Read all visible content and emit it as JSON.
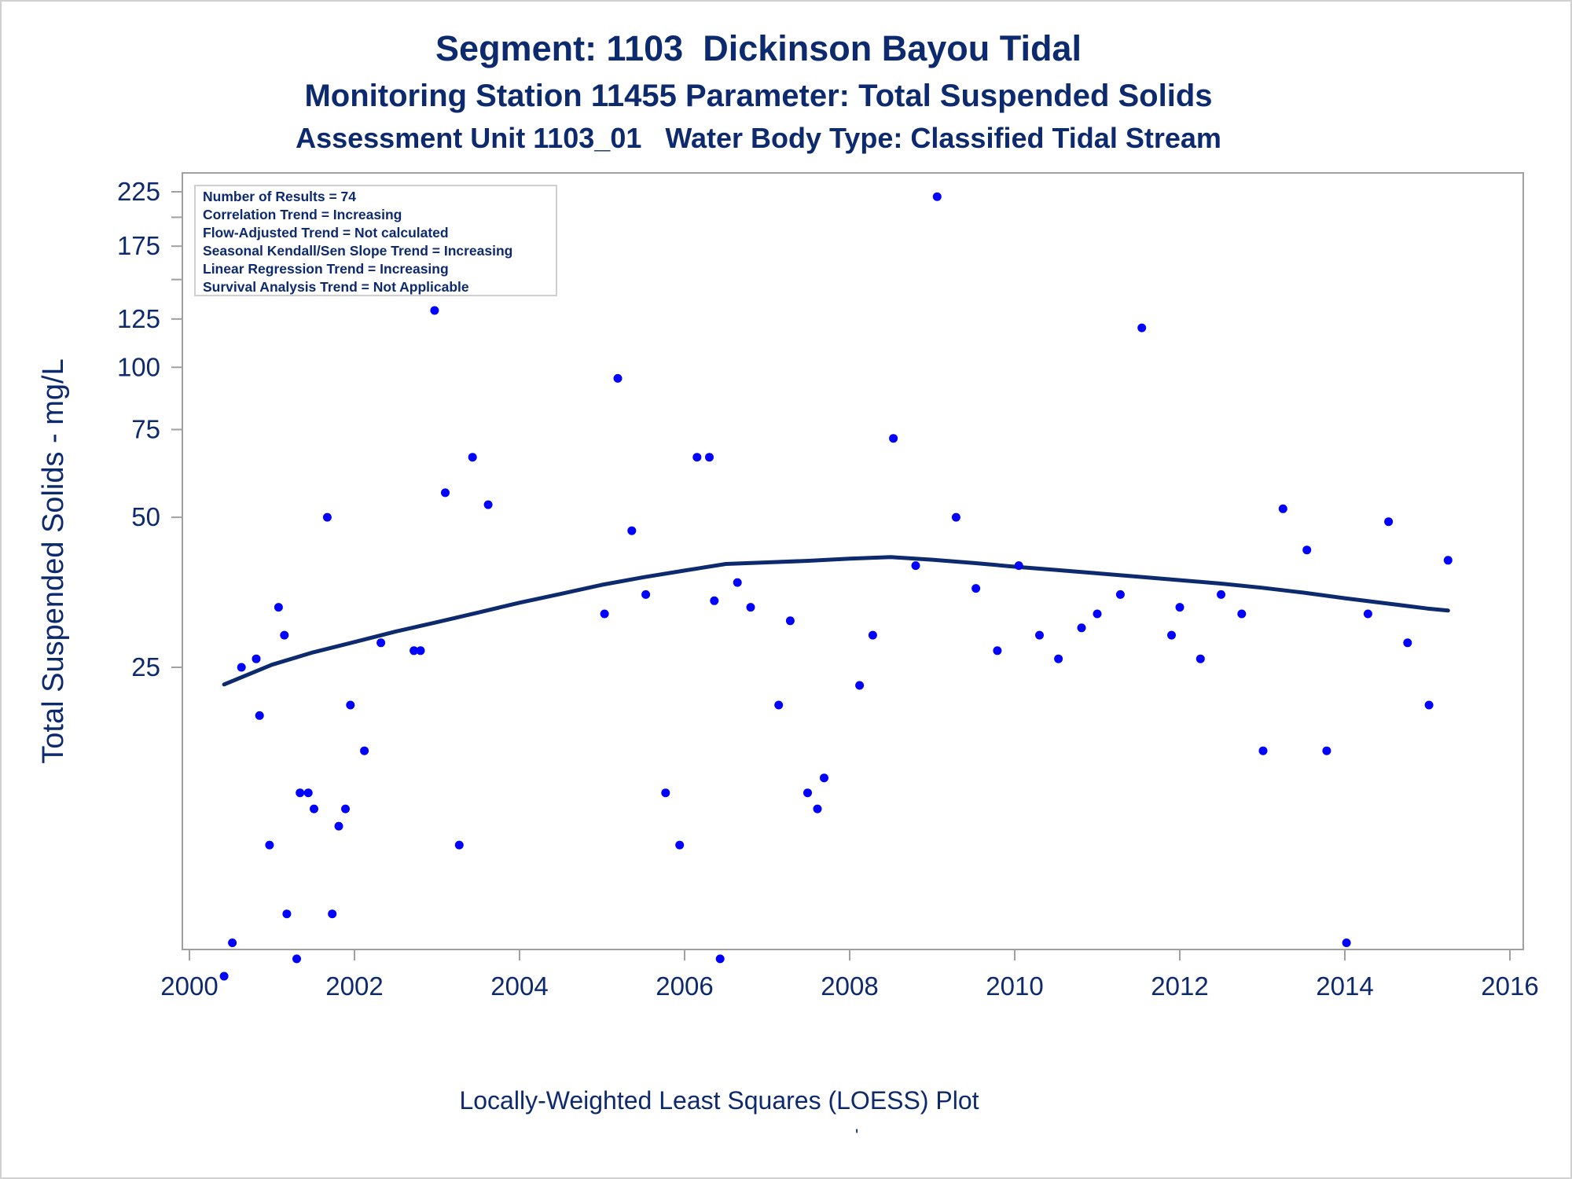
{
  "titles": {
    "line1": "Segment: 1103  Dickinson Bayou Tidal",
    "line2": "Monitoring Station 11455 Parameter: Total Suspended Solids",
    "line3": "Assessment Unit 1103_01   Water Body Type: Classified Tidal Stream"
  },
  "footnote": "Locally-Weighted Least Squares (LOESS) Plot",
  "footnote_mark": "'",
  "stats_box": [
    "Number of Results = 74",
    "Correlation Trend = Increasing",
    "Flow-Adjusted Trend = Not calculated",
    "Seasonal Kendall/Sen Slope Trend = Increasing",
    "Linear Regression Trend = Increasing",
    "Survival Analysis Trend = Not Applicable"
  ],
  "colors": {
    "text": "#0d2a6e",
    "points": "#0000ff",
    "loess": "#0d2a6e",
    "axis": "#a0a0a0"
  },
  "chart_data": {
    "type": "scatter",
    "ylabel": "Total Suspended Solids - mg/L",
    "xlabel": "",
    "y_scale": "log",
    "xlim": [
      2000,
      2016
    ],
    "x_ticks": [
      2000,
      2002,
      2004,
      2006,
      2008,
      2010,
      2012,
      2014,
      2016
    ],
    "y_ticks": [
      25,
      50,
      75,
      100,
      125,
      175,
      225
    ],
    "grid": false,
    "legend": "top-left",
    "series": [
      {
        "kind": "points",
        "points": [
          [
            2000.42,
            6
          ],
          [
            2000.52,
            7
          ],
          [
            2000.63,
            25
          ],
          [
            2000.81,
            26
          ],
          [
            2000.85,
            20
          ],
          [
            2000.97,
            11
          ],
          [
            2001.08,
            33
          ],
          [
            2001.15,
            29
          ],
          [
            2001.18,
            8
          ],
          [
            2001.3,
            6.5
          ],
          [
            2001.34,
            14
          ],
          [
            2001.44,
            14
          ],
          [
            2001.51,
            13
          ],
          [
            2001.67,
            50
          ],
          [
            2001.73,
            8
          ],
          [
            2001.81,
            12
          ],
          [
            2001.89,
            13
          ],
          [
            2001.95,
            21
          ],
          [
            2002.12,
            17
          ],
          [
            2002.32,
            28
          ],
          [
            2002.72,
            27
          ],
          [
            2002.8,
            27
          ],
          [
            2002.97,
            130
          ],
          [
            2003.1,
            56
          ],
          [
            2003.27,
            11
          ],
          [
            2003.43,
            66
          ],
          [
            2003.62,
            53
          ],
          [
            2005.03,
            32
          ],
          [
            2005.19,
            95
          ],
          [
            2005.36,
            47
          ],
          [
            2005.53,
            35
          ],
          [
            2005.77,
            14
          ],
          [
            2005.94,
            11
          ],
          [
            2006.15,
            66
          ],
          [
            2006.3,
            66
          ],
          [
            2006.36,
            34
          ],
          [
            2006.43,
            6.5
          ],
          [
            2006.64,
            37
          ],
          [
            2006.8,
            33
          ],
          [
            2007.14,
            21
          ],
          [
            2007.28,
            31
          ],
          [
            2007.49,
            14
          ],
          [
            2007.61,
            13
          ],
          [
            2007.69,
            15
          ],
          [
            2008.12,
            23
          ],
          [
            2008.28,
            29
          ],
          [
            2008.53,
            72
          ],
          [
            2008.8,
            40
          ],
          [
            2009.06,
            220
          ],
          [
            2009.29,
            50
          ],
          [
            2009.53,
            36
          ],
          [
            2009.79,
            27
          ],
          [
            2010.05,
            40
          ],
          [
            2010.3,
            29
          ],
          [
            2010.53,
            26
          ],
          [
            2010.81,
            30
          ],
          [
            2011.0,
            32
          ],
          [
            2011.28,
            35
          ],
          [
            2011.54,
            120
          ],
          [
            2011.9,
            29
          ],
          [
            2012.0,
            33
          ],
          [
            2012.25,
            26
          ],
          [
            2012.5,
            35
          ],
          [
            2012.75,
            32
          ],
          [
            2013.01,
            17
          ],
          [
            2013.25,
            52
          ],
          [
            2013.54,
            43
          ],
          [
            2013.78,
            17
          ],
          [
            2014.02,
            7
          ],
          [
            2014.28,
            32
          ],
          [
            2014.53,
            49
          ],
          [
            2014.76,
            28
          ],
          [
            2015.02,
            21
          ],
          [
            2015.25,
            41
          ]
        ]
      },
      {
        "kind": "line",
        "points": [
          [
            2000.42,
            23.1
          ],
          [
            2001.0,
            25.3
          ],
          [
            2001.5,
            26.8
          ],
          [
            2002.0,
            28.1
          ],
          [
            2002.5,
            29.5
          ],
          [
            2003.0,
            30.8
          ],
          [
            2003.5,
            32.2
          ],
          [
            2004.0,
            33.7
          ],
          [
            2004.5,
            35.1
          ],
          [
            2005.0,
            36.6
          ],
          [
            2005.5,
            37.9
          ],
          [
            2006.0,
            39.1
          ],
          [
            2006.5,
            40.3
          ],
          [
            2007.0,
            40.6
          ],
          [
            2007.5,
            40.9
          ],
          [
            2008.0,
            41.3
          ],
          [
            2008.5,
            41.6
          ],
          [
            2009.0,
            41.1
          ],
          [
            2009.5,
            40.5
          ],
          [
            2010.0,
            39.8
          ],
          [
            2010.5,
            39.2
          ],
          [
            2011.0,
            38.6
          ],
          [
            2011.5,
            38.0
          ],
          [
            2012.0,
            37.4
          ],
          [
            2012.5,
            36.8
          ],
          [
            2013.0,
            36.1
          ],
          [
            2013.5,
            35.3
          ],
          [
            2014.0,
            34.4
          ],
          [
            2014.5,
            33.6
          ],
          [
            2015.0,
            32.8
          ],
          [
            2015.25,
            32.5
          ]
        ]
      }
    ]
  }
}
